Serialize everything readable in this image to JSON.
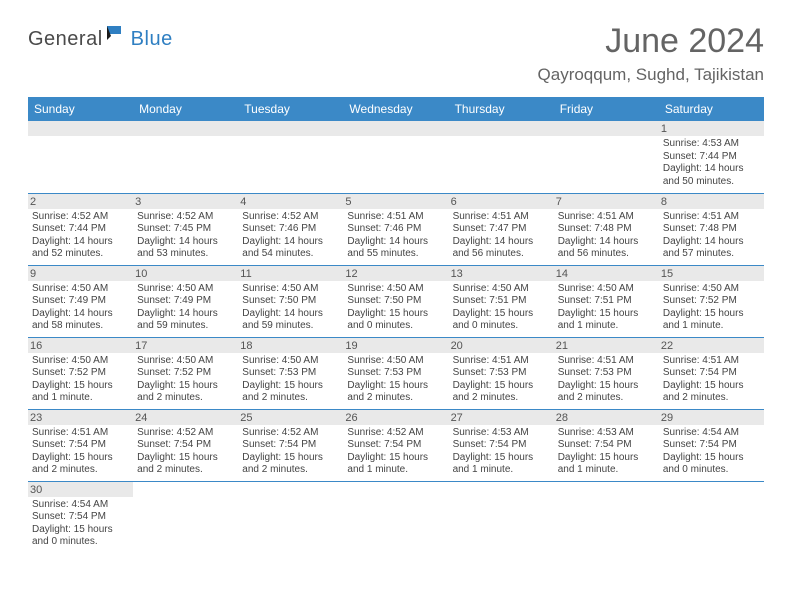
{
  "logo": {
    "text_dark": "General",
    "text_blue": "Blue"
  },
  "title": "June 2024",
  "location": "Qayroqqum, Sughd, Tajikistan",
  "columns": [
    "Sunday",
    "Monday",
    "Tuesday",
    "Wednesday",
    "Thursday",
    "Friday",
    "Saturday"
  ],
  "colors": {
    "header_bg": "#3b89c7",
    "header_fg": "#ffffff",
    "daynum_bg": "#e9e9e9",
    "rule": "#3b89c7",
    "title_fg": "#646464",
    "logo_blue": "#2f7fc2",
    "logo_dark": "#4a4a4a"
  },
  "weeks": [
    [
      null,
      null,
      null,
      null,
      null,
      null,
      {
        "n": "1",
        "sunrise": "4:53 AM",
        "sunset": "7:44 PM",
        "daylight": "14 hours and 50 minutes."
      }
    ],
    [
      {
        "n": "2",
        "sunrise": "4:52 AM",
        "sunset": "7:44 PM",
        "daylight": "14 hours and 52 minutes."
      },
      {
        "n": "3",
        "sunrise": "4:52 AM",
        "sunset": "7:45 PM",
        "daylight": "14 hours and 53 minutes."
      },
      {
        "n": "4",
        "sunrise": "4:52 AM",
        "sunset": "7:46 PM",
        "daylight": "14 hours and 54 minutes."
      },
      {
        "n": "5",
        "sunrise": "4:51 AM",
        "sunset": "7:46 PM",
        "daylight": "14 hours and 55 minutes."
      },
      {
        "n": "6",
        "sunrise": "4:51 AM",
        "sunset": "7:47 PM",
        "daylight": "14 hours and 56 minutes."
      },
      {
        "n": "7",
        "sunrise": "4:51 AM",
        "sunset": "7:48 PM",
        "daylight": "14 hours and 56 minutes."
      },
      {
        "n": "8",
        "sunrise": "4:51 AM",
        "sunset": "7:48 PM",
        "daylight": "14 hours and 57 minutes."
      }
    ],
    [
      {
        "n": "9",
        "sunrise": "4:50 AM",
        "sunset": "7:49 PM",
        "daylight": "14 hours and 58 minutes."
      },
      {
        "n": "10",
        "sunrise": "4:50 AM",
        "sunset": "7:49 PM",
        "daylight": "14 hours and 59 minutes."
      },
      {
        "n": "11",
        "sunrise": "4:50 AM",
        "sunset": "7:50 PM",
        "daylight": "14 hours and 59 minutes."
      },
      {
        "n": "12",
        "sunrise": "4:50 AM",
        "sunset": "7:50 PM",
        "daylight": "15 hours and 0 minutes."
      },
      {
        "n": "13",
        "sunrise": "4:50 AM",
        "sunset": "7:51 PM",
        "daylight": "15 hours and 0 minutes."
      },
      {
        "n": "14",
        "sunrise": "4:50 AM",
        "sunset": "7:51 PM",
        "daylight": "15 hours and 1 minute."
      },
      {
        "n": "15",
        "sunrise": "4:50 AM",
        "sunset": "7:52 PM",
        "daylight": "15 hours and 1 minute."
      }
    ],
    [
      {
        "n": "16",
        "sunrise": "4:50 AM",
        "sunset": "7:52 PM",
        "daylight": "15 hours and 1 minute."
      },
      {
        "n": "17",
        "sunrise": "4:50 AM",
        "sunset": "7:52 PM",
        "daylight": "15 hours and 2 minutes."
      },
      {
        "n": "18",
        "sunrise": "4:50 AM",
        "sunset": "7:53 PM",
        "daylight": "15 hours and 2 minutes."
      },
      {
        "n": "19",
        "sunrise": "4:50 AM",
        "sunset": "7:53 PM",
        "daylight": "15 hours and 2 minutes."
      },
      {
        "n": "20",
        "sunrise": "4:51 AM",
        "sunset": "7:53 PM",
        "daylight": "15 hours and 2 minutes."
      },
      {
        "n": "21",
        "sunrise": "4:51 AM",
        "sunset": "7:53 PM",
        "daylight": "15 hours and 2 minutes."
      },
      {
        "n": "22",
        "sunrise": "4:51 AM",
        "sunset": "7:54 PM",
        "daylight": "15 hours and 2 minutes."
      }
    ],
    [
      {
        "n": "23",
        "sunrise": "4:51 AM",
        "sunset": "7:54 PM",
        "daylight": "15 hours and 2 minutes."
      },
      {
        "n": "24",
        "sunrise": "4:52 AM",
        "sunset": "7:54 PM",
        "daylight": "15 hours and 2 minutes."
      },
      {
        "n": "25",
        "sunrise": "4:52 AM",
        "sunset": "7:54 PM",
        "daylight": "15 hours and 2 minutes."
      },
      {
        "n": "26",
        "sunrise": "4:52 AM",
        "sunset": "7:54 PM",
        "daylight": "15 hours and 1 minute."
      },
      {
        "n": "27",
        "sunrise": "4:53 AM",
        "sunset": "7:54 PM",
        "daylight": "15 hours and 1 minute."
      },
      {
        "n": "28",
        "sunrise": "4:53 AM",
        "sunset": "7:54 PM",
        "daylight": "15 hours and 1 minute."
      },
      {
        "n": "29",
        "sunrise": "4:54 AM",
        "sunset": "7:54 PM",
        "daylight": "15 hours and 0 minutes."
      }
    ],
    [
      {
        "n": "30",
        "sunrise": "4:54 AM",
        "sunset": "7:54 PM",
        "daylight": "15 hours and 0 minutes."
      },
      null,
      null,
      null,
      null,
      null,
      null
    ]
  ],
  "labels": {
    "sunrise": "Sunrise:",
    "sunset": "Sunset:",
    "daylight": "Daylight:"
  }
}
